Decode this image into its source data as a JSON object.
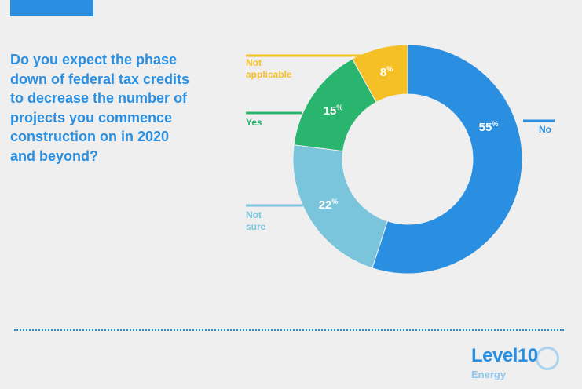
{
  "question": "Do you expect the phase down of federal tax credits to decrease the number of projects you commence construction on in 2020 and beyond?",
  "logo": {
    "main": "Level10",
    "sub": "Energy"
  },
  "colors": {
    "accent": "#2a8fe0",
    "background": "#efefef"
  },
  "chart_data": {
    "type": "pie",
    "donut": true,
    "title": "",
    "slices": [
      {
        "name": "No",
        "label_lines": [
          "No"
        ],
        "value": 55,
        "color": "#2a8fe0",
        "pct": "55",
        "pct_unit": "%"
      },
      {
        "name": "Not sure",
        "label_lines": [
          "Not",
          "sure"
        ],
        "value": 22,
        "color": "#7ac5db",
        "pct": "22",
        "pct_unit": "%"
      },
      {
        "name": "Yes",
        "label_lines": [
          "Yes"
        ],
        "value": 15,
        "color": "#2ab56f",
        "pct": "15",
        "pct_unit": "%"
      },
      {
        "name": "Not applicable",
        "label_lines": [
          "Not",
          "applicable"
        ],
        "value": 8,
        "color": "#f5bf26",
        "pct": "8",
        "pct_unit": "%"
      }
    ]
  }
}
